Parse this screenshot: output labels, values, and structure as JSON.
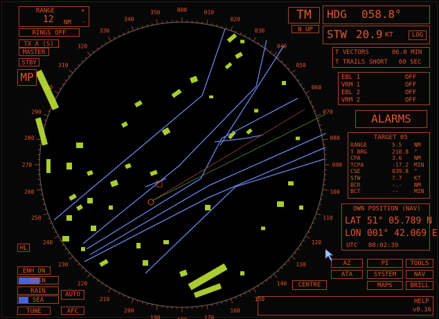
{
  "range": {
    "label": "RANGE",
    "value": "12",
    "unit": "NM",
    "plus": "+",
    "minus": "-"
  },
  "rings": "RINGS OFF",
  "tx": "TX A (S)",
  "master": "MASTER",
  "stby": "STBY",
  "mp": "MP",
  "hl": "HL",
  "enh": "ENH ON",
  "gain": "GAIN",
  "rain": "RAIN",
  "sea": "SEA",
  "auto": "AUTO",
  "tune": "TUNE",
  "afc": "AFC",
  "mode": {
    "tm": "TM",
    "nup": "N UP"
  },
  "hdg": {
    "label": "HDG",
    "value": "058.8°"
  },
  "stw": {
    "label": "STW",
    "value": "20.9",
    "unit": "KT",
    "log": "LOG"
  },
  "vectors": {
    "label": "T VECTORS",
    "value": "06.0 MIN"
  },
  "trails": {
    "label": "T TRAILS  SHORT",
    "value": "60 SEC"
  },
  "ebl_vrm": [
    {
      "label": "EBL 1",
      "value": "OFF"
    },
    {
      "label": "VRM 1",
      "value": "OFF"
    },
    {
      "label": "EBL 2",
      "value": "OFF"
    },
    {
      "label": "VRM 2",
      "value": "OFF"
    }
  ],
  "alarms": "ALARMS",
  "target": {
    "title": "TARGET 05",
    "rows": [
      {
        "k": "RANGE",
        "v": "5.5",
        "u": "NM"
      },
      {
        "k": "T BRG",
        "v": "210.8",
        "u": "°"
      },
      {
        "k": "CPA",
        "v": "3.6",
        "u": "NM"
      },
      {
        "k": "TCPA",
        "v": "-17.2",
        "u": "MIN"
      },
      {
        "k": "CSE",
        "v": "039.8",
        "u": "°"
      },
      {
        "k": "STW",
        "v": "7.7",
        "u": "KT"
      },
      {
        "k": "BCR",
        "v": "-.-",
        "u": "NM"
      },
      {
        "k": "BCT",
        "v": "--",
        "u": "MIN"
      }
    ]
  },
  "own_position": {
    "title": "OWN POSITION (NAV)",
    "lat_label": "LAT",
    "lat": "51° 05.789 N",
    "lon_label": "LON",
    "lon": "001° 42.069 E",
    "utc_label": "UTC",
    "utc": "08:02:39"
  },
  "menu": [
    "AZ",
    "PI",
    "TOOLS",
    "ATA",
    "SYSTEM",
    "NAV",
    "MAPS",
    "BRILL"
  ],
  "centre": "CENTRE",
  "help": "HELP",
  "version": "v0.16",
  "bearing_labels": [
    "000",
    "010",
    "020",
    "030",
    "040",
    "050",
    "060",
    "070",
    "080",
    "090",
    "100",
    "110",
    "120",
    "130",
    "140",
    "150",
    "160",
    "170",
    "180",
    "190",
    "200",
    "210",
    "220",
    "230",
    "240",
    "250",
    "260",
    "270",
    "280",
    "290",
    "300",
    "310",
    "320",
    "330",
    "340",
    "350"
  ],
  "colors": {
    "text": "#e2562c",
    "lines": "#6a86e8",
    "echo": "#c8f03a",
    "bar": "#4a62d8"
  }
}
